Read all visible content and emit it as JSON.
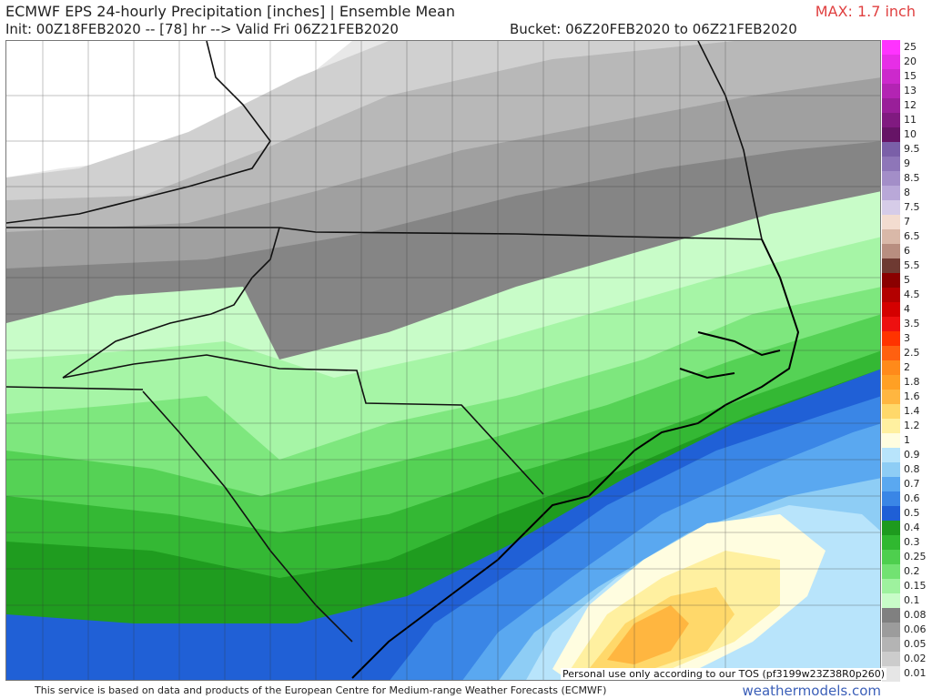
{
  "header": {
    "title": "ECMWF EPS 24-hourly Precipitation [inches] | Ensemble Mean",
    "init_line": "Init: 00Z18FEB2020 -- [78] hr --> Valid Fri 06Z21FEB2020",
    "bucket": "Bucket: 06Z20FEB2020 to 06Z21FEB2020",
    "max": "MAX: 1.7 inch"
  },
  "legend": {
    "items": [
      {
        "label": "25",
        "color": "#ff33ff"
      },
      {
        "label": "20",
        "color": "#e62ee6"
      },
      {
        "label": "15",
        "color": "#cc29cc"
      },
      {
        "label": "13",
        "color": "#b324b3"
      },
      {
        "label": "12",
        "color": "#991f99"
      },
      {
        "label": "11",
        "color": "#801a80"
      },
      {
        "label": "10",
        "color": "#661466"
      },
      {
        "label": "9.5",
        "color": "#7a5fa8"
      },
      {
        "label": "9",
        "color": "#8e76b8"
      },
      {
        "label": "8.5",
        "color": "#a38ec8"
      },
      {
        "label": "8",
        "color": "#b9a8d8"
      },
      {
        "label": "7.5",
        "color": "#d6cce8"
      },
      {
        "label": "7",
        "color": "#f3dcd0"
      },
      {
        "label": "6.5",
        "color": "#d9b8a8"
      },
      {
        "label": "6",
        "color": "#b88e80"
      },
      {
        "label": "5.5",
        "color": "#6e3a32"
      },
      {
        "label": "5",
        "color": "#8a0000"
      },
      {
        "label": "4.5",
        "color": "#b30000"
      },
      {
        "label": "4",
        "color": "#d40000"
      },
      {
        "label": "3.5",
        "color": "#ee1010"
      },
      {
        "label": "3",
        "color": "#ff3300"
      },
      {
        "label": "2.5",
        "color": "#ff6010"
      },
      {
        "label": "2",
        "color": "#ff8a1a"
      },
      {
        "label": "1.8",
        "color": "#ffa024"
      },
      {
        "label": "1.6",
        "color": "#ffb640"
      },
      {
        "label": "1.4",
        "color": "#ffd86a"
      },
      {
        "label": "1.2",
        "color": "#fff0a0"
      },
      {
        "label": "1",
        "color": "#fffde0"
      },
      {
        "label": "0.9",
        "color": "#b8e4fb"
      },
      {
        "label": "0.8",
        "color": "#8ecdf5"
      },
      {
        "label": "0.7",
        "color": "#5aa8f0"
      },
      {
        "label": "0.6",
        "color": "#3a86e6"
      },
      {
        "label": "0.5",
        "color": "#1f5fd6"
      },
      {
        "label": "0.4",
        "color": "#1e9a1e"
      },
      {
        "label": "0.3",
        "color": "#30b830"
      },
      {
        "label": "0.25",
        "color": "#4ecf4e"
      },
      {
        "label": "0.2",
        "color": "#72e272"
      },
      {
        "label": "0.15",
        "color": "#9ef29e"
      },
      {
        "label": "0.1",
        "color": "#c8fcc8"
      },
      {
        "label": "0.08",
        "color": "#808080"
      },
      {
        "label": "0.06",
        "color": "#9c9c9c"
      },
      {
        "label": "0.05",
        "color": "#b4b4b4"
      },
      {
        "label": "0.02",
        "color": "#cccccc"
      },
      {
        "label": "0.01",
        "color": "#e6e6e6"
      }
    ]
  },
  "tos_note": "Personal use only according to our TOS (pf3199w23Z38R0p260)",
  "footer": {
    "note": "This service is based on data and products of the European Centre for Medium-range Weather Forecasts (ECMWF)",
    "brand": "weathermodels.com"
  }
}
